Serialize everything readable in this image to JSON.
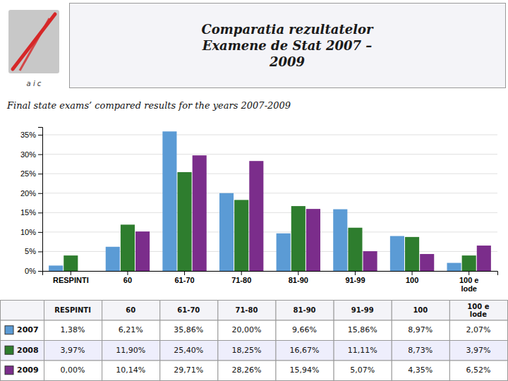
{
  "chart_data": {
    "type": "bar",
    "title": "Comparatia rezultatelor\nExamene de Stat 2007 –\n2009",
    "subtitle": "Final state exams’ compared results for the years 2007-2009",
    "annotations": [
      "a i c"
    ],
    "categories": [
      "RESPINTI",
      "60",
      "61-70",
      "71-80",
      "81-90",
      "91-99",
      "100",
      "100 e\nlode"
    ],
    "series": [
      {
        "name": "2007",
        "color": "#5B9BD5",
        "values": [
          1.38,
          6.21,
          35.86,
          20.0,
          9.66,
          15.86,
          8.97,
          2.07
        ],
        "value_labels": [
          "1,38%",
          "6,21%",
          "35,86%",
          "20,00%",
          "9,66%",
          "15,86%",
          "8,97%",
          "2,07%"
        ]
      },
      {
        "name": "2008",
        "color": "#2E7D2E",
        "values": [
          3.97,
          11.9,
          25.4,
          18.25,
          16.67,
          11.11,
          8.73,
          3.97
        ],
        "value_labels": [
          "3,97%",
          "11,90%",
          "25,40%",
          "18,25%",
          "16,67%",
          "11,11%",
          "8,73%",
          "3,97%"
        ]
      },
      {
        "name": "2009",
        "color": "#7B2D8B",
        "values": [
          0.0,
          10.14,
          29.71,
          28.26,
          15.94,
          5.07,
          4.35,
          6.52
        ],
        "value_labels": [
          "0,00%",
          "10,14%",
          "29,71%",
          "28,26%",
          "15,94%",
          "5,07%",
          "4,35%",
          "6,52%"
        ]
      }
    ],
    "ylim": [
      0,
      37
    ],
    "yticks": [
      {
        "value": 0,
        "label": "0%"
      },
      {
        "value": 5,
        "label": "5%"
      },
      {
        "value": 10,
        "label": "10%"
      },
      {
        "value": 15,
        "label": "15%"
      },
      {
        "value": 20,
        "label": "20%"
      },
      {
        "value": 25,
        "label": "25%"
      },
      {
        "value": 30,
        "label": "30%"
      },
      {
        "value": 35,
        "label": "35%"
      }
    ],
    "grid": true
  }
}
